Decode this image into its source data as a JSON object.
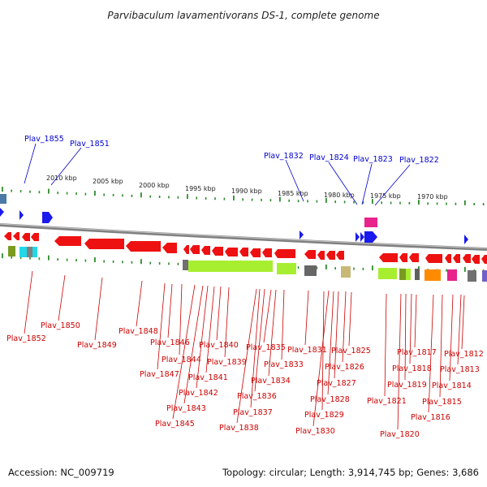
{
  "title": "Parvibaculum lavamentivorans DS-1, complete genome",
  "accession": "Accession: NC_009719",
  "summary": "Topology: circular; Length: 3,914,745 bp; Genes: 3,686",
  "colors": {
    "forward_gene": "#2020ee",
    "reverse_gene": "#ee1111",
    "tick": "#2e8b2e",
    "backbone": "#888888",
    "red_label": "#cc0000",
    "blue_label": "#0000cc"
  },
  "scale_labels": [
    "2010 kbp",
    "2005 kbp",
    "2000 kbp",
    "1995 kbp",
    "1990 kbp",
    "1985 kbp",
    "1980 kbp",
    "1975 kbp",
    "1970 kbp"
  ],
  "forward_labels": [
    "Plav_1855",
    "Plav_1851",
    "Plav_1832",
    "Plav_1824",
    "Plav_1823",
    "Plav_1822"
  ],
  "reverse_labels": [
    "Plav_1852",
    "Plav_1850",
    "Plav_1849",
    "Plav_1848",
    "Plav_1847",
    "Plav_1846",
    "Plav_1845",
    "Plav_1844",
    "Plav_1843",
    "Plav_1842",
    "Plav_1841",
    "Plav_1840",
    "Plav_1839",
    "Plav_1838",
    "Plav_1837",
    "Plav_1836",
    "Plav_1835",
    "Plav_1834",
    "Plav_1833",
    "Plav_1831",
    "Plav_1830",
    "Plav_1829",
    "Plav_1828",
    "Plav_1827",
    "Plav_1826",
    "Plav_1825",
    "Plav_1821",
    "Plav_1820",
    "Plav_1819",
    "Plav_1818",
    "Plav_1817",
    "Plav_1816",
    "Plav_1815",
    "Plav_1814",
    "Plav_1813",
    "Plav_1812"
  ]
}
